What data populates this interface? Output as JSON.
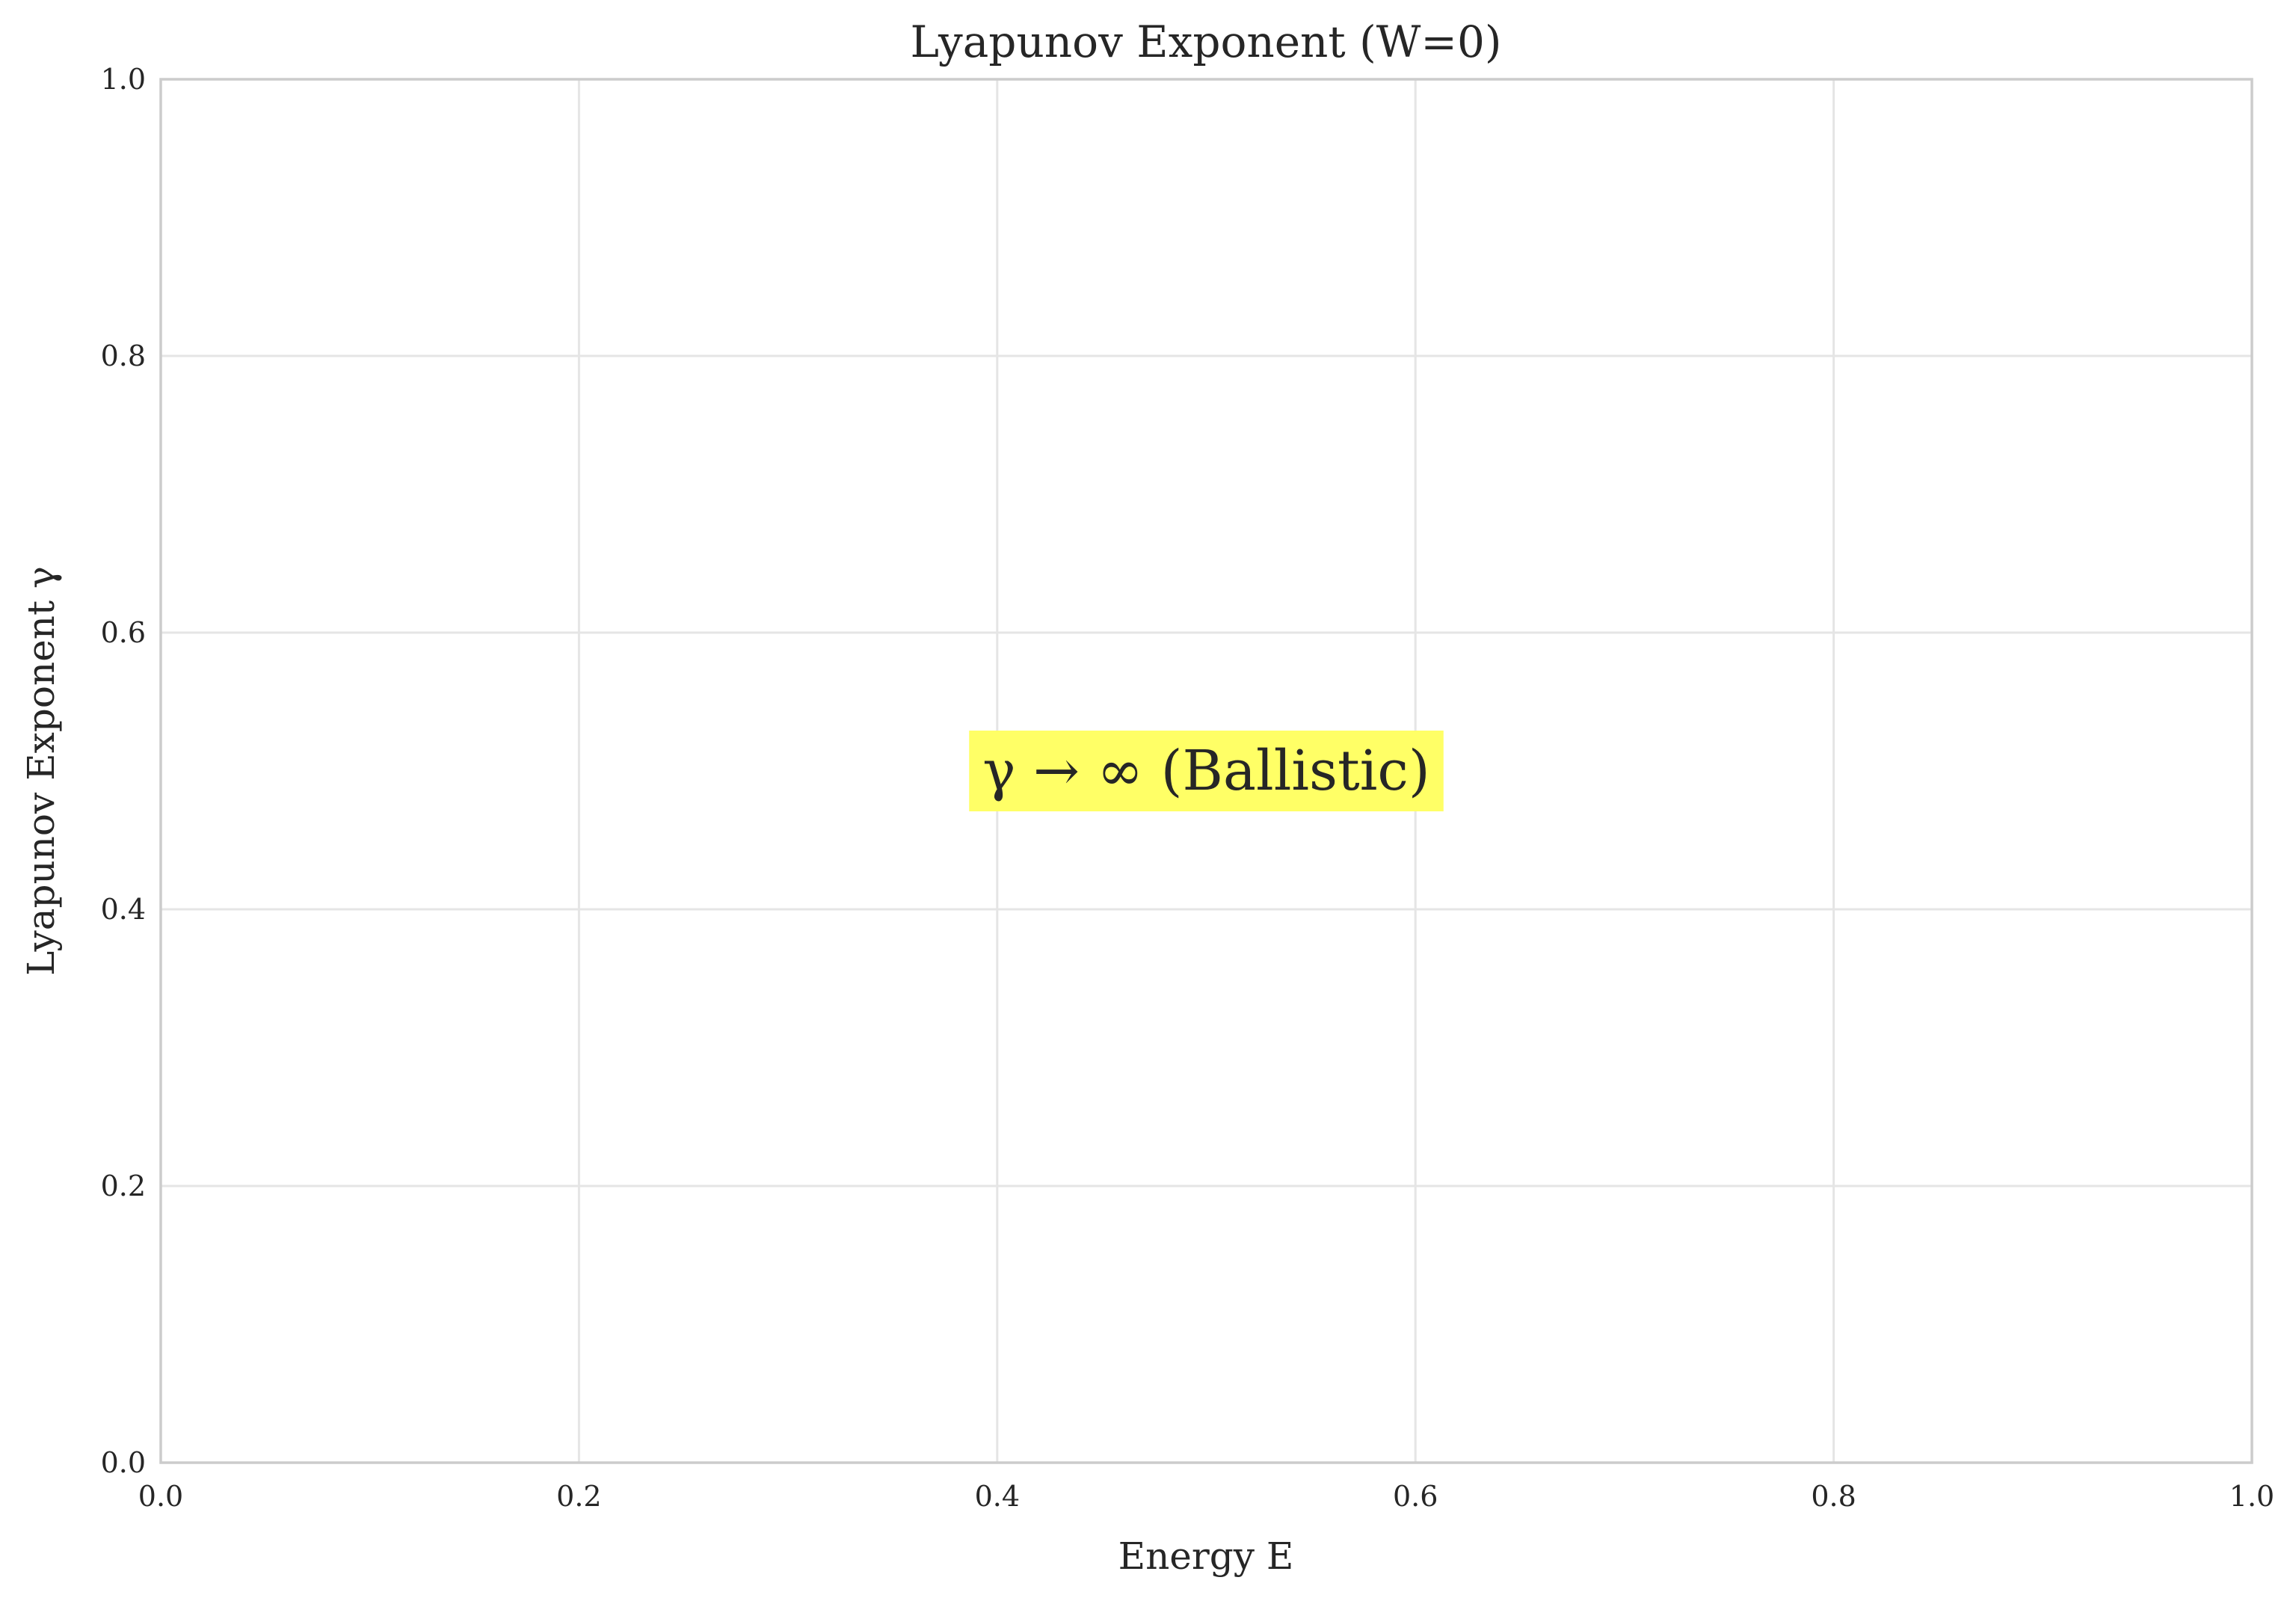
{
  "chart_data": {
    "type": "line",
    "title": "Lyapunov Exponent (W=0)",
    "xlabel": "Energy E",
    "ylabel": "Lyapunov Exponent γ",
    "xlim": [
      0.0,
      1.0
    ],
    "ylim": [
      0.0,
      1.0
    ],
    "x_ticks": [
      0.0,
      0.2,
      0.4,
      0.6,
      0.8,
      1.0
    ],
    "y_ticks": [
      0.0,
      0.2,
      0.4,
      0.6,
      0.8,
      1.0
    ],
    "x_tick_labels": [
      "0.0",
      "0.2",
      "0.4",
      "0.6",
      "0.8",
      "1.0"
    ],
    "y_tick_labels": [
      "0.0",
      "0.2",
      "0.4",
      "0.6",
      "0.8",
      "1.0"
    ],
    "grid": true,
    "series": [],
    "annotations": [
      {
        "text": "γ → ∞ (Ballistic)",
        "x": 0.5,
        "y": 0.5,
        "background": "#ffff66"
      }
    ]
  },
  "colors": {
    "grid": "#e5e5e5",
    "spine": "#cccccc",
    "text": "#262626",
    "annotation_bg": "#ffff66"
  }
}
